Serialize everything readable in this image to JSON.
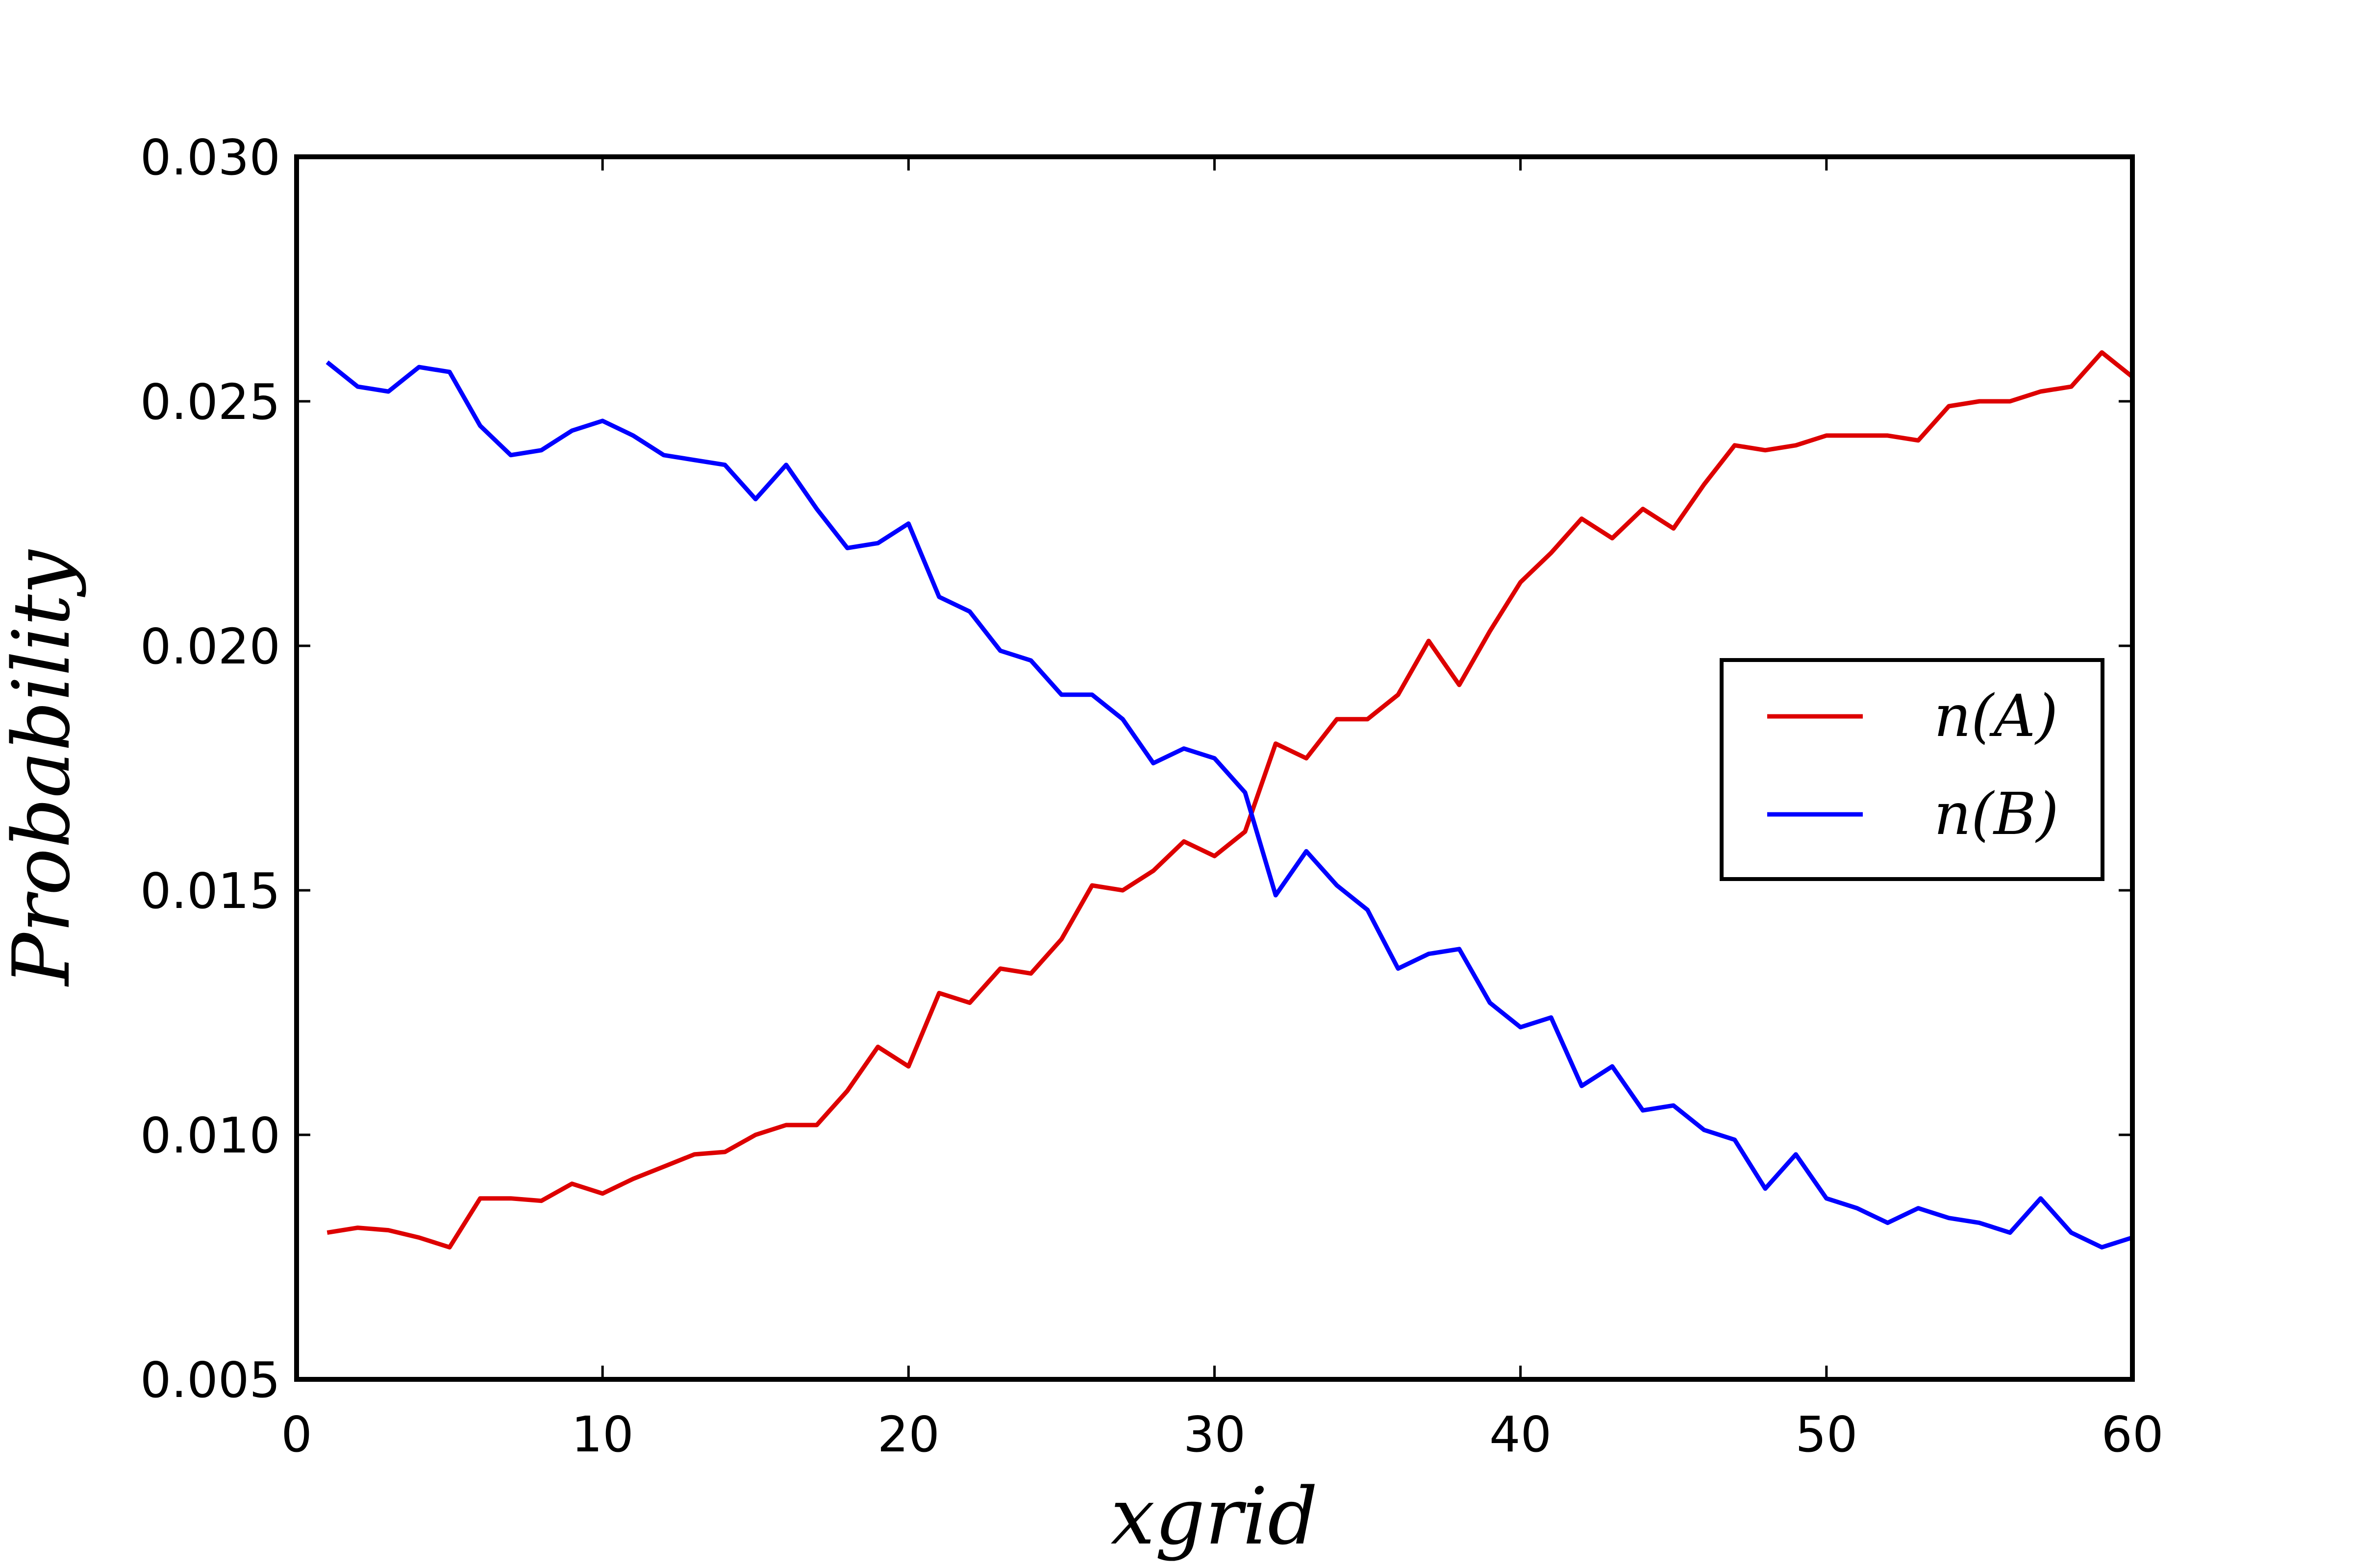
{
  "chart_data": {
    "type": "line",
    "title": "",
    "xlabel": "xgrid",
    "ylabel": "Probability",
    "xlim": [
      0,
      60
    ],
    "ylim": [
      0.005,
      0.03
    ],
    "xticks": [
      0,
      10,
      20,
      30,
      40,
      50,
      60
    ],
    "xtick_labels": [
      "0",
      "10",
      "20",
      "30",
      "40",
      "50",
      "60"
    ],
    "yticks": [
      0.005,
      0.01,
      0.015,
      0.02,
      0.025,
      0.03
    ],
    "ytick_labels": [
      "0.005",
      "0.010",
      "0.015",
      "0.020",
      "0.025",
      "0.030"
    ],
    "grid": false,
    "legend_position": "center-right",
    "x": [
      1,
      2,
      3,
      4,
      5,
      6,
      7,
      8,
      9,
      10,
      11,
      12,
      13,
      14,
      15,
      16,
      17,
      18,
      19,
      20,
      21,
      22,
      23,
      24,
      25,
      26,
      27,
      28,
      29,
      30,
      31,
      32,
      33,
      34,
      35,
      36,
      37,
      38,
      39,
      40,
      41,
      42,
      43,
      44,
      45,
      46,
      47,
      48,
      49,
      50,
      51,
      52,
      53,
      54,
      55,
      56,
      57,
      58,
      59,
      60
    ],
    "series": [
      {
        "name": "n(A)",
        "color": "#dd0000",
        "values": [
          0.008,
          0.0081,
          0.00805,
          0.0079,
          0.0077,
          0.0087,
          0.0087,
          0.00865,
          0.009,
          0.0088,
          0.0091,
          0.00935,
          0.0096,
          0.00965,
          0.01,
          0.0102,
          0.0102,
          0.0109,
          0.0118,
          0.0114,
          0.0129,
          0.0127,
          0.0134,
          0.0133,
          0.014,
          0.0151,
          0.015,
          0.0154,
          0.016,
          0.0157,
          0.0162,
          0.018,
          0.0177,
          0.0185,
          0.0185,
          0.019,
          0.0201,
          0.0192,
          0.0203,
          0.0213,
          0.0219,
          0.0226,
          0.0222,
          0.0228,
          0.0224,
          0.0233,
          0.0241,
          0.024,
          0.0241,
          0.0243,
          0.0243,
          0.0243,
          0.0242,
          0.0249,
          0.025,
          0.025,
          0.0252,
          0.0253,
          0.026,
          0.0255
        ]
      },
      {
        "name": "n(B)",
        "color": "#0000ff",
        "values": [
          0.0258,
          0.0253,
          0.0252,
          0.0257,
          0.0256,
          0.0245,
          0.0239,
          0.024,
          0.0244,
          0.0246,
          0.0243,
          0.0239,
          0.0238,
          0.0237,
          0.023,
          0.0237,
          0.0228,
          0.022,
          0.0221,
          0.0225,
          0.021,
          0.0207,
          0.0199,
          0.0197,
          0.019,
          0.019,
          0.0185,
          0.0176,
          0.0179,
          0.0177,
          0.017,
          0.0149,
          0.0158,
          0.0151,
          0.0146,
          0.0134,
          0.0137,
          0.0138,
          0.0127,
          0.0122,
          0.0124,
          0.011,
          0.0114,
          0.0105,
          0.0106,
          0.0101,
          0.0099,
          0.0089,
          0.0096,
          0.0087,
          0.0085,
          0.0082,
          0.0085,
          0.0083,
          0.0082,
          0.008,
          0.0087,
          0.008,
          0.0077,
          0.0079
        ]
      }
    ]
  }
}
